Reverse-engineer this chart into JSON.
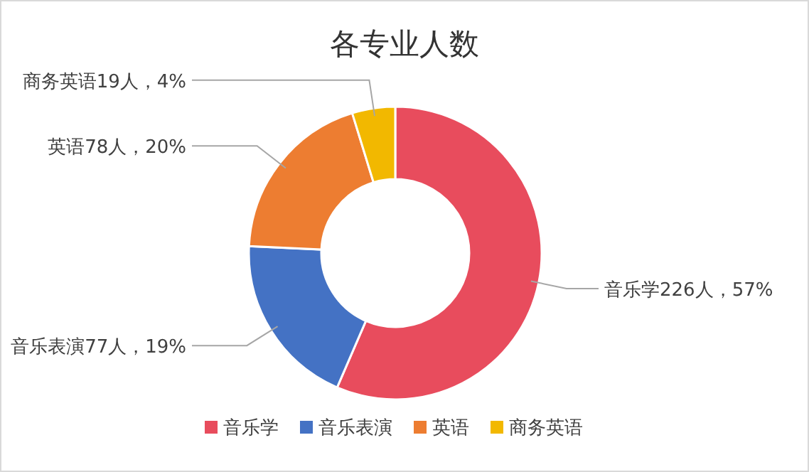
{
  "chart_data": {
    "type": "donut",
    "title": "各专业人数",
    "categories": [
      "音乐学",
      "音乐表演",
      "英语",
      "商务英语"
    ],
    "values": [
      226,
      77,
      78,
      19
    ],
    "colors": [
      "#e84c5d",
      "#4472c4",
      "#ed7d31",
      "#f2b800"
    ],
    "value_labels": [
      "音乐学226人，57%",
      "音乐表演77人，19%",
      "英语78人，20%",
      "商务英语19人，4%"
    ],
    "legend": "bottom"
  }
}
